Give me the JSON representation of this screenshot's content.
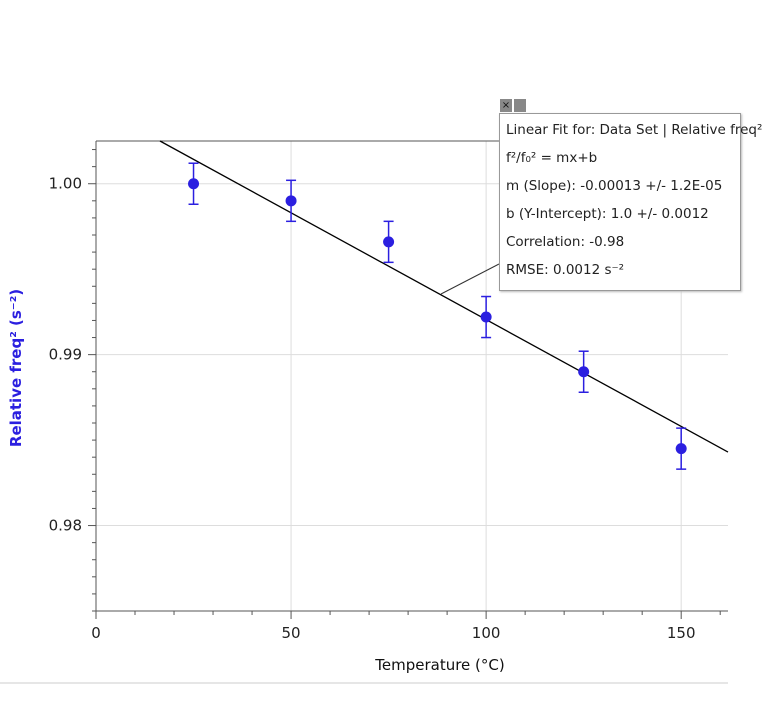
{
  "chart_data": {
    "type": "scatter",
    "title": "",
    "xlabel": "Temperature (°C)",
    "ylabel": "Relative freq² (s⁻²)",
    "xlim": [
      0,
      162
    ],
    "ylim": [
      0.975,
      1.0025
    ],
    "x_ticks": [
      "0",
      "50",
      "100",
      "150"
    ],
    "x_tick_values": [
      0,
      50,
      100,
      150
    ],
    "y_ticks": [
      "1.00",
      "0.99",
      "0.98"
    ],
    "y_tick_values": [
      1.0,
      0.99,
      0.98
    ],
    "grid": true,
    "series": [
      {
        "name": "Data Set | Relative freq²",
        "color": "#2b1fe0",
        "x": [
          25,
          50,
          75,
          100,
          125,
          150
        ],
        "y": [
          1.0,
          0.999,
          0.9966,
          0.9922,
          0.989,
          0.9845
        ],
        "error": 0.0012
      }
    ],
    "fit": {
      "slope": -0.000125,
      "intercept": 1.00455,
      "color": "#000000"
    }
  },
  "fit_box": {
    "close": "×",
    "lines": [
      "Linear Fit for: Data Set |  Relative freq²",
      "f²/f₀² = mx+b",
      "m (Slope): -0.00013 +/- 1.2E-05",
      "b (Y-Intercept): 1.0 +/- 0.0012",
      "Correlation: -0.98",
      "RMSE: 0.0012 s⁻²"
    ]
  }
}
